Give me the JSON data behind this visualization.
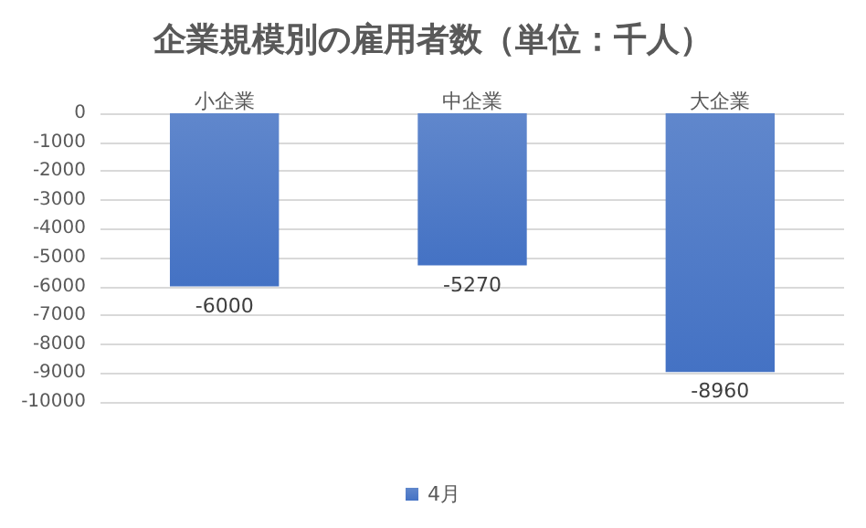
{
  "chart_data": {
    "type": "bar",
    "title": "企業規模別の雇用者数（単位：千人）",
    "categories": [
      "小企業",
      "中企業",
      "大企業"
    ],
    "series": [
      {
        "name": "4月",
        "color": "#4472c4",
        "values": [
          -6000,
          -5270,
          -8960
        ]
      }
    ],
    "ylim": [
      -10000,
      0
    ],
    "yticks": [
      0,
      -1000,
      -2000,
      -3000,
      -4000,
      -5000,
      -6000,
      -7000,
      -8000,
      -9000,
      -10000
    ],
    "grid": "y",
    "legend": "bottom",
    "data_labels": true
  }
}
